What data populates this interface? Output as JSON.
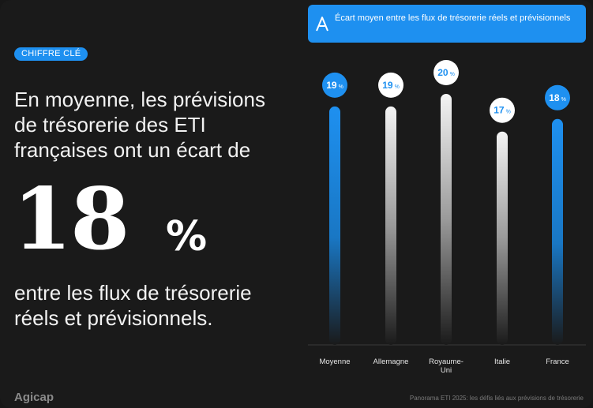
{
  "badge": "CHIFFRE CLÉ",
  "intro_text": "En moyenne, les prévisions de trésorerie des ETI françaises ont un écart de",
  "key_figure": {
    "value": "18",
    "unit": "%"
  },
  "outro_text": "entre les flux de trésorerie réels et prévisionnels.",
  "logo_text": "Agicap",
  "footer_note": "Panorama ETI 2025: les défis liés aux prévisions de trésorerie",
  "colors": {
    "accent": "#1e90f0",
    "background": "#1a1a1a",
    "text": "#ffffff"
  },
  "chart_data": {
    "type": "bar",
    "title": "Écart moyen entre les flux de trésorerie réels et prévisionnels",
    "categories": [
      "Moyenne",
      "Allemagne",
      "Royaume-Uni",
      "Italie",
      "France"
    ],
    "category_lines": [
      [
        "Moyenne"
      ],
      [
        "Allemagne"
      ],
      [
        "Royaume-",
        "Uni"
      ],
      [
        "Italie"
      ],
      [
        "France"
      ]
    ],
    "values": [
      19,
      19,
      20,
      17,
      18
    ],
    "unit": "%",
    "highlight": [
      "accent",
      "neutral",
      "neutral",
      "neutral",
      "accent"
    ],
    "grid": false,
    "legend": "none"
  }
}
